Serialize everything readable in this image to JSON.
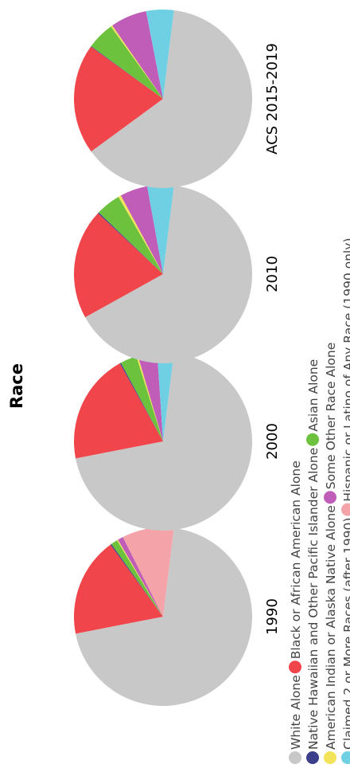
{
  "chart_data": {
    "type": "pie",
    "title": "Race",
    "orientation": "rotated-90-ccw",
    "legend_position": "bottom",
    "categories": [
      "White Alone",
      "Black or African American Alone",
      "Native Hawaiian and Other Pacific Islander Alone",
      "Asian Alone",
      "American Indian or Alaska Native Alone",
      "Some Other Race Alone",
      "Claimed 2 or More Races (after 1990)",
      "Hispanic or Latino of Any Race (1990 only)"
    ],
    "colors": [
      "#c8c8c8",
      "#f0464b",
      "#3b3f8c",
      "#6cc13d",
      "#f2e35a",
      "#bf5db8",
      "#6fcfe3",
      "#f4a3a9"
    ],
    "series": [
      {
        "name": "1990",
        "values": [
          70.0,
          18.0,
          0.2,
          1.2,
          0.2,
          1.0,
          0.0,
          9.4
        ]
      },
      {
        "name": "2000",
        "values": [
          70.0,
          20.0,
          0.2,
          3.0,
          0.3,
          3.5,
          3.0,
          0.0
        ]
      },
      {
        "name": "2010",
        "values": [
          65.0,
          20.0,
          0.2,
          4.5,
          0.5,
          5.0,
          4.8,
          0.0
        ]
      },
      {
        "name": "ACS 2015-2019",
        "values": [
          63.0,
          20.0,
          0.1,
          5.0,
          0.3,
          6.6,
          5.0,
          0.0
        ]
      }
    ]
  }
}
